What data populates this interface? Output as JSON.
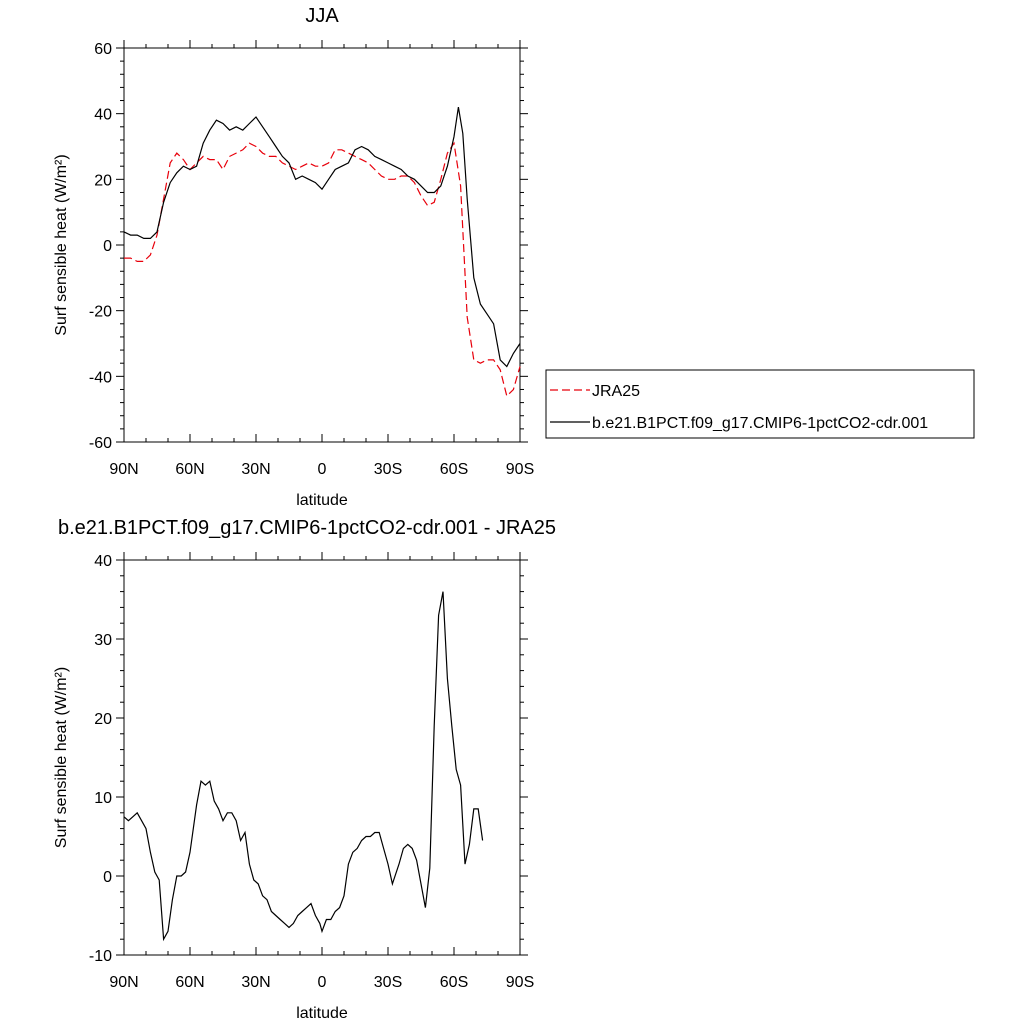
{
  "chart_data": [
    {
      "type": "line",
      "title": "JJA",
      "xlabel": "latitude",
      "ylabel": "Surf sensible heat (W/m²)",
      "xlim": [
        90,
        -90
      ],
      "ylim": [
        -60,
        60
      ],
      "x_ticks": [
        90,
        60,
        30,
        0,
        -30,
        -60,
        -90
      ],
      "x_tick_labels": [
        "90N",
        "60N",
        "30N",
        "0",
        "30S",
        "60S",
        "90S"
      ],
      "y_ticks": [
        -60,
        -40,
        -20,
        0,
        20,
        40,
        60
      ],
      "y_tick_labels": [
        "-60",
        "-40",
        "-20",
        "0",
        "20",
        "40",
        "60"
      ],
      "legend_position": "right",
      "series": [
        {
          "name": "JRA25",
          "color": "#e8000b",
          "dash": "dashed",
          "points": [
            [
              90,
              -4
            ],
            [
              87,
              -4
            ],
            [
              84,
              -5
            ],
            [
              81,
              -5
            ],
            [
              78,
              -3
            ],
            [
              75,
              3
            ],
            [
              72,
              14
            ],
            [
              69,
              25
            ],
            [
              66,
              28
            ],
            [
              63,
              26
            ],
            [
              60,
              23
            ],
            [
              57,
              25
            ],
            [
              54,
              27
            ],
            [
              51,
              26
            ],
            [
              48,
              26
            ],
            [
              45,
              23
            ],
            [
              42,
              27
            ],
            [
              39,
              28
            ],
            [
              36,
              29
            ],
            [
              33,
              31
            ],
            [
              30,
              30
            ],
            [
              27,
              28
            ],
            [
              24,
              27
            ],
            [
              21,
              27
            ],
            [
              18,
              25
            ],
            [
              15,
              24
            ],
            [
              12,
              23
            ],
            [
              9,
              24
            ],
            [
              6,
              25
            ],
            [
              3,
              24
            ],
            [
              0,
              24
            ],
            [
              -3,
              25
            ],
            [
              -6,
              29
            ],
            [
              -9,
              29
            ],
            [
              -12,
              28
            ],
            [
              -15,
              27
            ],
            [
              -18,
              26
            ],
            [
              -21,
              25
            ],
            [
              -24,
              23
            ],
            [
              -27,
              21
            ],
            [
              -30,
              20
            ],
            [
              -33,
              20
            ],
            [
              -36,
              21
            ],
            [
              -39,
              21
            ],
            [
              -42,
              19
            ],
            [
              -45,
              15
            ],
            [
              -48,
              12
            ],
            [
              -51,
              13
            ],
            [
              -54,
              20
            ],
            [
              -57,
              28
            ],
            [
              -60,
              31
            ],
            [
              -63,
              18
            ],
            [
              -66,
              -22
            ],
            [
              -69,
              -35
            ],
            [
              -72,
              -36
            ],
            [
              -75,
              -35
            ],
            [
              -78,
              -35
            ],
            [
              -81,
              -38
            ],
            [
              -84,
              -46
            ],
            [
              -87,
              -44
            ],
            [
              -90,
              -37
            ]
          ]
        },
        {
          "name": "b.e21.B1PCT.f09_g17.CMIP6-1pctCO2-cdr.001",
          "color": "#000000",
          "dash": "solid",
          "points": [
            [
              90,
              4
            ],
            [
              87,
              3
            ],
            [
              84,
              3
            ],
            [
              81,
              2
            ],
            [
              78,
              2
            ],
            [
              75,
              4
            ],
            [
              72,
              13
            ],
            [
              69,
              19
            ],
            [
              66,
              22
            ],
            [
              63,
              24
            ],
            [
              60,
              23
            ],
            [
              57,
              24
            ],
            [
              54,
              31
            ],
            [
              51,
              35
            ],
            [
              48,
              38
            ],
            [
              45,
              37
            ],
            [
              42,
              35
            ],
            [
              39,
              36
            ],
            [
              36,
              35
            ],
            [
              33,
              37
            ],
            [
              30,
              39
            ],
            [
              27,
              36
            ],
            [
              24,
              33
            ],
            [
              21,
              30
            ],
            [
              18,
              27
            ],
            [
              15,
              25
            ],
            [
              12,
              20
            ],
            [
              9,
              21
            ],
            [
              6,
              20
            ],
            [
              3,
              19
            ],
            [
              0,
              17
            ],
            [
              -3,
              20
            ],
            [
              -6,
              23
            ],
            [
              -9,
              24
            ],
            [
              -12,
              25
            ],
            [
              -15,
              29
            ],
            [
              -18,
              30
            ],
            [
              -21,
              29
            ],
            [
              -24,
              27
            ],
            [
              -27,
              26
            ],
            [
              -30,
              25
            ],
            [
              -33,
              24
            ],
            [
              -36,
              23
            ],
            [
              -39,
              21
            ],
            [
              -42,
              20
            ],
            [
              -45,
              18
            ],
            [
              -48,
              16
            ],
            [
              -51,
              16
            ],
            [
              -54,
              18
            ],
            [
              -57,
              24
            ],
            [
              -60,
              33
            ],
            [
              -62,
              42
            ],
            [
              -64,
              34
            ],
            [
              -66,
              14
            ],
            [
              -69,
              -10
            ],
            [
              -72,
              -18
            ],
            [
              -75,
              -21
            ],
            [
              -78,
              -24
            ],
            [
              -81,
              -35
            ],
            [
              -84,
              -37
            ],
            [
              -87,
              -33
            ],
            [
              -90,
              -30
            ]
          ]
        }
      ]
    },
    {
      "type": "line",
      "title": "b.e21.B1PCT.f09_g17.CMIP6-1pctCO2-cdr.001 - JRA25",
      "xlabel": "latitude",
      "ylabel": "Surf sensible heat (W/m²)",
      "xlim": [
        90,
        -90
      ],
      "ylim": [
        -10,
        40
      ],
      "x_ticks": [
        90,
        60,
        30,
        0,
        -30,
        -60,
        -90
      ],
      "x_tick_labels": [
        "90N",
        "60N",
        "30N",
        "0",
        "30S",
        "60S",
        "90S"
      ],
      "y_ticks": [
        -10,
        0,
        10,
        20,
        30,
        40
      ],
      "y_tick_labels": [
        "-10",
        "0",
        "10",
        "20",
        "30",
        "40"
      ],
      "series": [
        {
          "color": "#000000",
          "dash": "solid",
          "points": [
            [
              90,
              7.5
            ],
            [
              88,
              7
            ],
            [
              86,
              7.5
            ],
            [
              84,
              8
            ],
            [
              82,
              7
            ],
            [
              80,
              6
            ],
            [
              78,
              3
            ],
            [
              76,
              0.5
            ],
            [
              74,
              -0.5
            ],
            [
              72,
              -8
            ],
            [
              70,
              -7
            ],
            [
              68,
              -3
            ],
            [
              66,
              0
            ],
            [
              64,
              0
            ],
            [
              62,
              0.5
            ],
            [
              60,
              3
            ],
            [
              57,
              9
            ],
            [
              55,
              12
            ],
            [
              53,
              11.5
            ],
            [
              51,
              12
            ],
            [
              49,
              9.5
            ],
            [
              47,
              8.5
            ],
            [
              45,
              7
            ],
            [
              43,
              8
            ],
            [
              41,
              8
            ],
            [
              39,
              7
            ],
            [
              37,
              4.5
            ],
            [
              35,
              5.5
            ],
            [
              33,
              1.5
            ],
            [
              31,
              -0.5
            ],
            [
              29,
              -1
            ],
            [
              27,
              -2.5
            ],
            [
              25,
              -3
            ],
            [
              23,
              -4.5
            ],
            [
              21,
              -5
            ],
            [
              19,
              -5.5
            ],
            [
              17,
              -6
            ],
            [
              15,
              -6.5
            ],
            [
              13,
              -6
            ],
            [
              11,
              -5
            ],
            [
              9,
              -4.5
            ],
            [
              7,
              -4
            ],
            [
              5,
              -3.5
            ],
            [
              3,
              -5
            ],
            [
              1,
              -6
            ],
            [
              0,
              -7
            ],
            [
              -2,
              -5.5
            ],
            [
              -4,
              -5.5
            ],
            [
              -6,
              -4.5
            ],
            [
              -8,
              -4
            ],
            [
              -10,
              -2.5
            ],
            [
              -12,
              1.5
            ],
            [
              -14,
              3
            ],
            [
              -16,
              3.5
            ],
            [
              -18,
              4.5
            ],
            [
              -20,
              5
            ],
            [
              -22,
              5
            ],
            [
              -24,
              5.5
            ],
            [
              -26,
              5.5
            ],
            [
              -28,
              3.5
            ],
            [
              -30,
              1.5
            ],
            [
              -32,
              -1
            ],
            [
              -35,
              1.5
            ],
            [
              -37,
              3.5
            ],
            [
              -39,
              4
            ],
            [
              -41,
              3.5
            ],
            [
              -43,
              2
            ],
            [
              -45,
              -1
            ],
            [
              -47,
              -4
            ],
            [
              -49,
              1
            ],
            [
              -51,
              19
            ],
            [
              -53,
              33
            ],
            [
              -55,
              36
            ],
            [
              -57,
              25
            ],
            [
              -59,
              19
            ],
            [
              -61,
              13.5
            ],
            [
              -63,
              11.5
            ],
            [
              -65,
              1.5
            ],
            [
              -67,
              4
            ],
            [
              -69,
              8.5
            ],
            [
              -71,
              8.5
            ],
            [
              -73,
              4.5
            ]
          ]
        }
      ]
    }
  ]
}
